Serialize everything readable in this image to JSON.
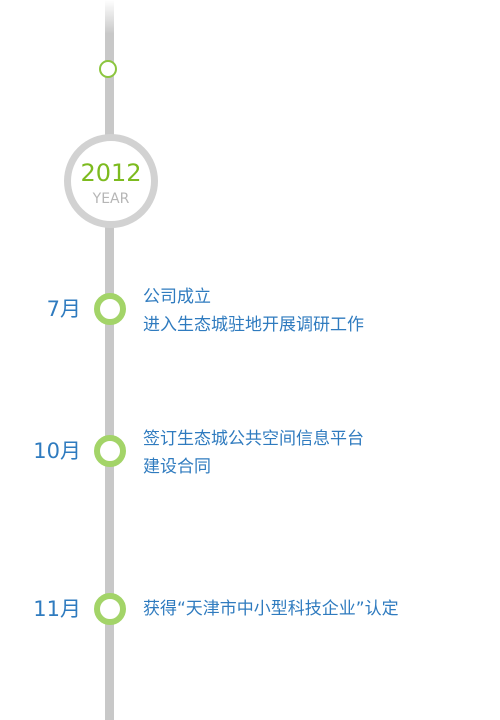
{
  "timeline": {
    "year": {
      "number": "2012",
      "label": "YEAR"
    },
    "events": [
      {
        "month": "7月",
        "lines": [
          "公司成立",
          "进入生态城驻地开展调研工作"
        ]
      },
      {
        "month": "10月",
        "lines": [
          "签订生态城公共空间信息平台",
          "建设合同"
        ]
      },
      {
        "month": "11月",
        "lines": [
          "获得“天津市中小型科技企业”认定"
        ]
      }
    ]
  },
  "colors": {
    "line": "#c8c8c8",
    "year_accent": "#7dbb1f",
    "dot_ring": "#a3d468",
    "text_blue": "#2f7bbf"
  }
}
